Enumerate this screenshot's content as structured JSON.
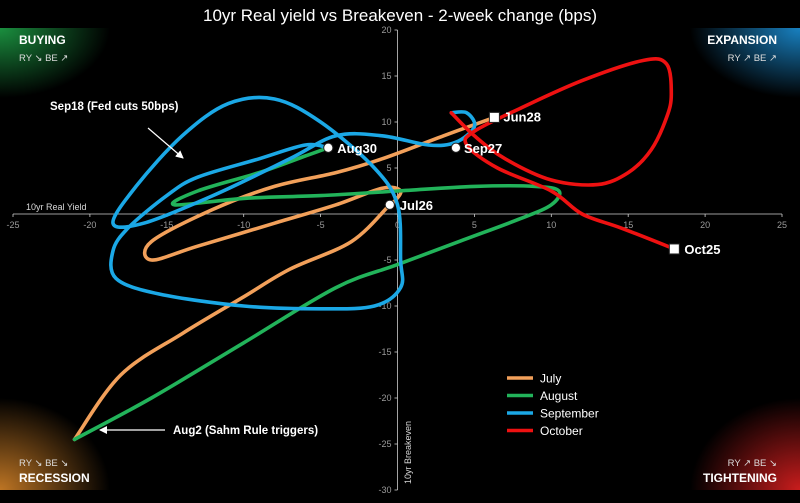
{
  "chart_data": {
    "type": "line",
    "title": "10yr Real yield vs Breakeven - 2-week change (bps)",
    "xlabel": "10yr Real Yield",
    "ylabel": "10yr Breakeven",
    "xlim": [
      -25,
      25
    ],
    "ylim": [
      -30,
      20
    ],
    "x_ticks": [
      "-25",
      "-20",
      "-15",
      "-10",
      "-5",
      "0",
      "5",
      "10",
      "15",
      "20",
      "25"
    ],
    "y_ticks": [
      "20",
      "15",
      "10",
      "5",
      "0",
      "-5",
      "-10",
      "-15",
      "-20",
      "-25",
      "-30"
    ],
    "grid": false,
    "legend_position": "bottom-right",
    "series": [
      {
        "name": "July",
        "color": "#f2a05a",
        "points": [
          [
            6.3,
            10.5
          ],
          [
            3,
            8.5
          ],
          [
            -1,
            6
          ],
          [
            -4,
            4.5
          ],
          [
            -8,
            3
          ],
          [
            -12,
            0.5
          ],
          [
            -16,
            -3
          ],
          [
            -16,
            -5
          ],
          [
            -13,
            -3.5
          ],
          [
            -8,
            -1
          ],
          [
            -4,
            1
          ],
          [
            -1,
            2.8
          ],
          [
            0.2,
            2.5
          ],
          [
            -0.3,
            1.2
          ],
          [
            -0.5,
            1
          ],
          [
            -3,
            -3
          ],
          [
            -7,
            -6
          ],
          [
            -10,
            -9
          ],
          [
            -14,
            -13
          ],
          [
            -18,
            -17.5
          ],
          [
            -21,
            -24.5
          ]
        ]
      },
      {
        "name": "August",
        "color": "#22b35a",
        "points": [
          [
            -21,
            -24.5
          ],
          [
            -16,
            -20
          ],
          [
            -10,
            -14
          ],
          [
            -4,
            -8
          ],
          [
            0,
            -5.5
          ],
          [
            4,
            -3
          ],
          [
            8,
            -0.5
          ],
          [
            10,
            1
          ],
          [
            10.5,
            2.5
          ],
          [
            9,
            3
          ],
          [
            5,
            3
          ],
          [
            0,
            2.5
          ],
          [
            -5,
            2
          ],
          [
            -10,
            1.7
          ],
          [
            -14.5,
            1
          ],
          [
            -13,
            2.5
          ],
          [
            -9,
            4.5
          ],
          [
            -6,
            6.3
          ],
          [
            -4.5,
            7.2
          ]
        ]
      },
      {
        "name": "September",
        "color": "#1ba8e6",
        "points": [
          [
            -4.5,
            7.2
          ],
          [
            -6,
            7.5
          ],
          [
            -9,
            6
          ],
          [
            -13,
            4
          ],
          [
            -15,
            2
          ],
          [
            -17.5,
            -1.5
          ],
          [
            -18.5,
            -4
          ],
          [
            -18.3,
            -7
          ],
          [
            -15.5,
            -8.7
          ],
          [
            -10,
            -10
          ],
          [
            -5,
            -10.3
          ],
          [
            -1.5,
            -10
          ],
          [
            0.2,
            -8
          ],
          [
            0.2,
            -5
          ],
          [
            0,
            1
          ],
          [
            -1.5,
            5
          ],
          [
            -5,
            10
          ],
          [
            -8,
            12.5
          ],
          [
            -11,
            12
          ],
          [
            -14,
            8.5
          ],
          [
            -17,
            3
          ],
          [
            -18.5,
            -1
          ],
          [
            -16.5,
            -1
          ],
          [
            -12,
            2
          ],
          [
            -7,
            6
          ],
          [
            -4,
            8.5
          ],
          [
            -1,
            8.5
          ],
          [
            2,
            7.5
          ],
          [
            3.8,
            7.8
          ],
          [
            5,
            9.5
          ],
          [
            4.5,
            11
          ],
          [
            3.5,
            11
          ]
        ]
      },
      {
        "name": "October",
        "color": "#ee1111",
        "points": [
          [
            3.5,
            11
          ],
          [
            5,
            8.5
          ],
          [
            7,
            6
          ],
          [
            10,
            3.7
          ],
          [
            13,
            3.2
          ],
          [
            15,
            4.5
          ],
          [
            16.5,
            7
          ],
          [
            17.5,
            10.5
          ],
          [
            17.8,
            13
          ],
          [
            17.5,
            16.3
          ],
          [
            16,
            16.7
          ],
          [
            12,
            14.5
          ],
          [
            8,
            11.5
          ],
          [
            5,
            9
          ],
          [
            4.5,
            7.5
          ],
          [
            6.5,
            5
          ],
          [
            10,
            2.5
          ],
          [
            12,
            0
          ],
          [
            14.5,
            -1.5
          ],
          [
            18,
            -3.8
          ]
        ]
      }
    ],
    "point_labels": [
      {
        "label": "Jun28",
        "x": 6.3,
        "y": 10.5,
        "marker": "square",
        "color": "#ffffff"
      },
      {
        "label": "Aug30",
        "x": -4.5,
        "y": 7.2,
        "marker": "circle",
        "color": "#ffffff"
      },
      {
        "label": "Sep27",
        "x": 3.8,
        "y": 7.2,
        "marker": "circle",
        "color": "#ffffff"
      },
      {
        "label": "Jul26",
        "x": -0.5,
        "y": 1,
        "marker": "circle",
        "color": "#ffffff"
      },
      {
        "label": "Oct25",
        "x": 18,
        "y": -3.8,
        "marker": "square",
        "color": "#ffffff"
      }
    ],
    "annotations": [
      {
        "text": "Sep18 (Fed cuts 50bps)",
        "arrow_to": [
          -14.5,
          4.5
        ]
      },
      {
        "text": "Aug2 (Sahm Rule triggers)",
        "arrow_to": [
          -21,
          -24.2
        ]
      }
    ],
    "quadrants": [
      {
        "name": "BUYING",
        "sub": "RY ↘   BE ↗",
        "position": "top-left",
        "color": "#1fa84a"
      },
      {
        "name": "EXPANSION",
        "sub": "RY ↗   BE ↗",
        "position": "top-right",
        "color": "#1b8fd6"
      },
      {
        "name": "RECESSION",
        "sub": "RY ↘   BE ↘",
        "position": "bottom-left",
        "color": "#e08a2a"
      },
      {
        "name": "TIGHTENING",
        "sub": "RY ↗   BE ↘",
        "position": "bottom-right",
        "color": "#e02020"
      }
    ]
  }
}
